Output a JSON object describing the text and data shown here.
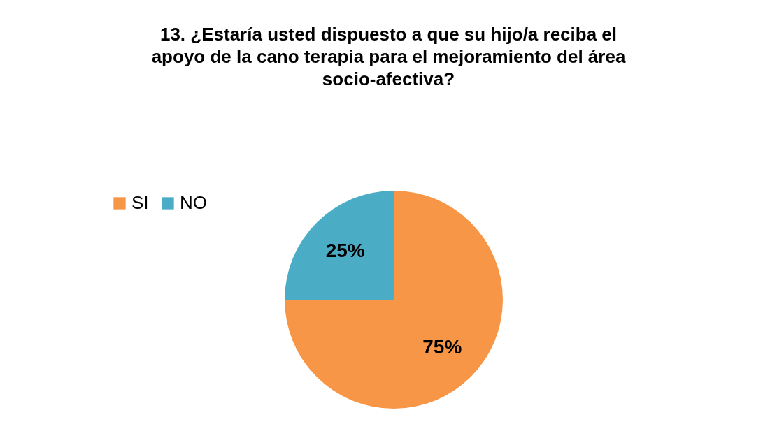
{
  "chart_data": {
    "type": "pie",
    "title": "13. ¿Estaría usted dispuesto a que su hijo/a reciba el apoyo de la cano terapia para el mejoramiento del área socio-afectiva?",
    "categories": [
      "SI",
      "NO"
    ],
    "values": [
      75,
      25
    ],
    "colors": [
      "#f79646",
      "#4bacc6"
    ],
    "value_labels": [
      "75%",
      "25%"
    ],
    "legend": "left"
  }
}
